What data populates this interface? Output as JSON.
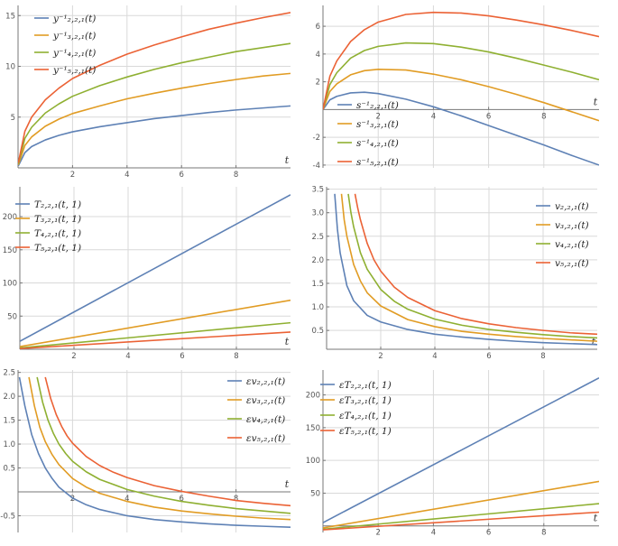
{
  "colors": [
    "#5e81b5",
    "#e19c24",
    "#8fb032",
    "#eb6235"
  ],
  "chart_data": [
    {
      "type": "line",
      "xlim": [
        0,
        10
      ],
      "ylim": [
        0,
        16
      ],
      "xticks": [
        2,
        4,
        6,
        8
      ],
      "yticks": [
        5,
        10,
        15
      ],
      "xtick_labels": [
        "2",
        "4",
        "6",
        "8"
      ],
      "ytick_labels": [
        "5",
        "10",
        "15"
      ],
      "xlabel": "t",
      "legend_position": "top-left",
      "grid": true,
      "series": [
        {
          "name": "y⁻¹₂,₂,₁(t)",
          "x": [
            0.01,
            0.25,
            0.5,
            1,
            1.5,
            2,
            3,
            4,
            5,
            6,
            7,
            8,
            9,
            10
          ],
          "y": [
            0.2,
            1.5,
            2.1,
            2.75,
            3.2,
            3.55,
            4.05,
            4.45,
            4.85,
            5.15,
            5.45,
            5.7,
            5.9,
            6.1
          ]
        },
        {
          "name": "y⁻¹₃,₂,₁(t)",
          "x": [
            0.01,
            0.25,
            0.5,
            1,
            1.5,
            2,
            3,
            4,
            5,
            6,
            7,
            8,
            9,
            10
          ],
          "y": [
            0.3,
            2.2,
            3.05,
            4.1,
            4.8,
            5.35,
            6.1,
            6.8,
            7.35,
            7.85,
            8.3,
            8.7,
            9.05,
            9.3
          ]
        },
        {
          "name": "y⁻¹₄,₂,₁(t)",
          "x": [
            0.01,
            0.25,
            0.5,
            1,
            1.5,
            2,
            3,
            4,
            5,
            6,
            7,
            8,
            9,
            10
          ],
          "y": [
            0.4,
            2.9,
            4.0,
            5.4,
            6.3,
            7.05,
            8.1,
            8.95,
            9.7,
            10.35,
            10.9,
            11.45,
            11.85,
            12.25
          ]
        },
        {
          "name": "y⁻¹₅,₂,₁(t)",
          "x": [
            0.01,
            0.25,
            0.5,
            1,
            1.5,
            2,
            3,
            4,
            5,
            6,
            7,
            8,
            9,
            10
          ],
          "y": [
            0.5,
            3.6,
            5.0,
            6.7,
            7.85,
            8.8,
            10.1,
            11.2,
            12.1,
            12.9,
            13.65,
            14.25,
            14.8,
            15.3
          ]
        }
      ]
    },
    {
      "type": "line",
      "xlim": [
        0,
        10
      ],
      "ylim": [
        -4.2,
        7.5
      ],
      "xticks": [
        2,
        4,
        6,
        8
      ],
      "yticks": [
        -4,
        -2,
        2,
        4,
        6
      ],
      "xtick_labels": [
        "2",
        "4",
        "6",
        "8"
      ],
      "ytick_labels": [
        "-4",
        "-2",
        "2",
        "4",
        "6"
      ],
      "xlabel": "t",
      "legend_position": "bottom-left",
      "grid": true,
      "series": [
        {
          "name": "s⁻¹₂,₂,₁(t)",
          "x": [
            0,
            0.25,
            0.5,
            1,
            1.5,
            2,
            3,
            4,
            5,
            6,
            7,
            8,
            9,
            10
          ],
          "y": [
            0,
            0.7,
            0.95,
            1.2,
            1.25,
            1.15,
            0.75,
            0.2,
            -0.45,
            -1.15,
            -1.85,
            -2.55,
            -3.3,
            -4.0
          ]
        },
        {
          "name": "s⁻¹₃,₂,₁(t)",
          "x": [
            0,
            0.25,
            0.5,
            1,
            1.5,
            2,
            3,
            4,
            5,
            6,
            7,
            8,
            9,
            10
          ],
          "y": [
            0,
            1.3,
            1.85,
            2.5,
            2.8,
            2.9,
            2.85,
            2.55,
            2.15,
            1.65,
            1.1,
            0.5,
            -0.15,
            -0.8
          ]
        },
        {
          "name": "s⁻¹₄,₂,₁(t)",
          "x": [
            0,
            0.25,
            0.5,
            1,
            1.5,
            2,
            3,
            4,
            5,
            6,
            7,
            8,
            9,
            10
          ],
          "y": [
            0,
            1.8,
            2.65,
            3.7,
            4.25,
            4.55,
            4.8,
            4.75,
            4.5,
            4.15,
            3.7,
            3.2,
            2.7,
            2.15
          ]
        },
        {
          "name": "s⁻¹₅,₂,₁(t)",
          "x": [
            0,
            0.25,
            0.5,
            1,
            1.5,
            2,
            3,
            4,
            5,
            6,
            7,
            8,
            9,
            10
          ],
          "y": [
            0,
            2.4,
            3.5,
            4.9,
            5.75,
            6.3,
            6.85,
            7.0,
            6.95,
            6.75,
            6.45,
            6.1,
            5.7,
            5.25
          ]
        }
      ]
    },
    {
      "type": "line",
      "xlim": [
        0,
        10
      ],
      "ylim": [
        0,
        245
      ],
      "xticks": [
        2,
        4,
        6,
        8
      ],
      "yticks": [
        50,
        100,
        150,
        200
      ],
      "xtick_labels": [
        "2",
        "4",
        "6",
        "8"
      ],
      "ytick_labels": [
        "50",
        "100",
        "150",
        "200"
      ],
      "xlabel": "t",
      "legend_position": "top-left",
      "grid": true,
      "series": [
        {
          "name": "T₂,₂,₁(t, 1)",
          "x": [
            0,
            10
          ],
          "y": [
            12,
            233
          ]
        },
        {
          "name": "T₃,₂,₁(t, 1)",
          "x": [
            0,
            10
          ],
          "y": [
            4,
            74
          ]
        },
        {
          "name": "T₄,₂,₁(t, 1)",
          "x": [
            0,
            10
          ],
          "y": [
            2,
            40
          ]
        },
        {
          "name": "T₅,₂,₁(t, 1)",
          "x": [
            0,
            10
          ],
          "y": [
            1,
            26
          ]
        }
      ]
    },
    {
      "type": "line",
      "xlim": [
        0,
        10
      ],
      "ylim": [
        0.1,
        3.55
      ],
      "xticks": [
        2,
        4,
        6,
        8
      ],
      "yticks": [
        0.5,
        1.0,
        1.5,
        2.0,
        2.5,
        3.0,
        3.5
      ],
      "xtick_labels": [
        "2",
        "4",
        "6",
        "8"
      ],
      "ytick_labels": [
        "0.5",
        "1.0",
        "1.5",
        "2.0",
        "2.5",
        "3.0",
        "3.5"
      ],
      "xlabel": "t",
      "legend_position": "top-right",
      "grid": true,
      "series": [
        {
          "name": "v₂,₂,₁(t)",
          "x": [
            0.3,
            0.4,
            0.5,
            0.75,
            1,
            1.5,
            2,
            3,
            4,
            5,
            6,
            7,
            8,
            9,
            10
          ],
          "y": [
            3.4,
            2.65,
            2.15,
            1.45,
            1.13,
            0.82,
            0.68,
            0.52,
            0.42,
            0.36,
            0.31,
            0.27,
            0.24,
            0.22,
            0.2
          ]
        },
        {
          "name": "v₃,₂,₁(t)",
          "x": [
            0.55,
            0.65,
            0.75,
            1,
            1.25,
            1.5,
            2,
            3,
            4,
            5,
            6,
            7,
            8,
            9,
            10
          ],
          "y": [
            3.4,
            2.85,
            2.5,
            1.9,
            1.55,
            1.3,
            1.02,
            0.73,
            0.58,
            0.48,
            0.42,
            0.37,
            0.33,
            0.3,
            0.27
          ]
        },
        {
          "name": "v₄,₂,₁(t)",
          "x": [
            0.8,
            0.9,
            1,
            1.25,
            1.5,
            2,
            2.5,
            3,
            4,
            5,
            6,
            7,
            8,
            9,
            10
          ],
          "y": [
            3.4,
            3.0,
            2.7,
            2.15,
            1.8,
            1.37,
            1.12,
            0.95,
            0.74,
            0.61,
            0.52,
            0.46,
            0.41,
            0.37,
            0.34
          ]
        },
        {
          "name": "v₅,₂,₁(t)",
          "x": [
            1.05,
            1.15,
            1.25,
            1.5,
            1.75,
            2,
            2.5,
            3,
            4,
            5,
            6,
            7,
            8,
            9,
            10
          ],
          "y": [
            3.4,
            3.1,
            2.85,
            2.35,
            2.0,
            1.76,
            1.42,
            1.2,
            0.92,
            0.75,
            0.64,
            0.56,
            0.5,
            0.45,
            0.42
          ]
        }
      ]
    },
    {
      "type": "line",
      "xlim": [
        0,
        10
      ],
      "ylim": [
        -0.85,
        2.55
      ],
      "xticks": [
        2,
        4,
        6,
        8
      ],
      "yticks": [
        -0.5,
        0.5,
        1.0,
        1.5,
        2.0,
        2.5
      ],
      "xtick_labels": [
        "2",
        "4",
        "6",
        "8"
      ],
      "ytick_labels": [
        "-0.5",
        "0.5",
        "1.0",
        "1.5",
        "2.0",
        "2.5"
      ],
      "xlabel": "t",
      "legend_position": "top-right",
      "grid": true,
      "series": [
        {
          "name": "εv₂,₂,₁(t)",
          "x": [
            0.05,
            0.25,
            0.5,
            0.75,
            1,
            1.25,
            1.5,
            2,
            2.5,
            3,
            4,
            5,
            6,
            7,
            8,
            9,
            10
          ],
          "y": [
            2.4,
            1.8,
            1.2,
            0.8,
            0.5,
            0.28,
            0.1,
            -0.13,
            -0.27,
            -0.37,
            -0.5,
            -0.58,
            -0.63,
            -0.67,
            -0.7,
            -0.72,
            -0.74
          ]
        },
        {
          "name": "εv₃,₂,₁(t)",
          "x": [
            0.4,
            0.6,
            0.8,
            1,
            1.25,
            1.5,
            2,
            2.5,
            3,
            4,
            5,
            6,
            7,
            8,
            9,
            10
          ],
          "y": [
            2.4,
            1.8,
            1.35,
            1.05,
            0.78,
            0.57,
            0.28,
            0.1,
            -0.03,
            -0.2,
            -0.32,
            -0.4,
            -0.46,
            -0.51,
            -0.55,
            -0.58
          ]
        },
        {
          "name": "εv₄,₂,₁(t)",
          "x": [
            0.7,
            0.9,
            1.1,
            1.3,
            1.5,
            1.75,
            2,
            2.5,
            3,
            4,
            5,
            6,
            7,
            8,
            9,
            10
          ],
          "y": [
            2.4,
            1.88,
            1.5,
            1.22,
            1.0,
            0.8,
            0.64,
            0.42,
            0.26,
            0.05,
            -0.09,
            -0.2,
            -0.28,
            -0.35,
            -0.4,
            -0.45
          ]
        },
        {
          "name": "εv₅,₂,₁(t)",
          "x": [
            1.0,
            1.2,
            1.4,
            1.6,
            1.8,
            2,
            2.5,
            3,
            3.5,
            4,
            5,
            6,
            7,
            8,
            9,
            10
          ],
          "y": [
            2.4,
            1.95,
            1.62,
            1.37,
            1.17,
            1.02,
            0.74,
            0.55,
            0.41,
            0.3,
            0.13,
            0.01,
            -0.09,
            -0.18,
            -0.24,
            -0.29
          ]
        }
      ]
    },
    {
      "type": "line",
      "xlim": [
        0,
        10
      ],
      "ylim": [
        -10,
        238
      ],
      "xticks": [
        2,
        4,
        6,
        8
      ],
      "yticks": [
        50,
        100,
        150,
        200
      ],
      "xtick_labels": [
        "2",
        "4",
        "6",
        "8"
      ],
      "ytick_labels": [
        "50",
        "100",
        "150",
        "200"
      ],
      "xlabel": "t",
      "legend_position": "top-left",
      "grid": true,
      "series": [
        {
          "name": "εT₂,₂,₁(t, 1)",
          "x": [
            0,
            10
          ],
          "y": [
            5,
            226
          ]
        },
        {
          "name": "εT₃,₂,₁(t, 1)",
          "x": [
            0,
            10
          ],
          "y": [
            -3,
            68
          ]
        },
        {
          "name": "εT₄,₂,₁(t, 1)",
          "x": [
            0,
            10
          ],
          "y": [
            -5,
            34
          ]
        },
        {
          "name": "εT₅,₂,₁(t, 1)",
          "x": [
            0,
            10
          ],
          "y": [
            -6,
            21
          ]
        }
      ]
    }
  ]
}
